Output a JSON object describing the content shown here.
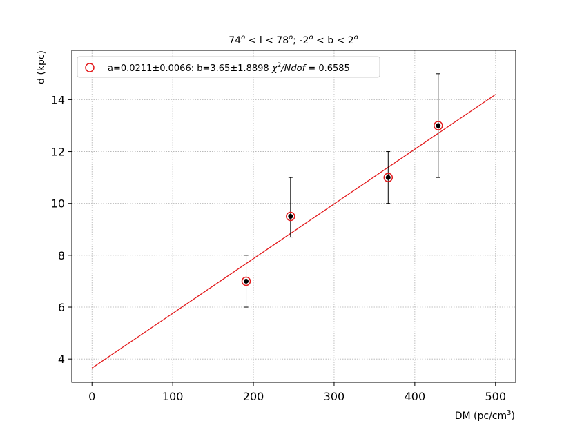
{
  "chart_data": {
    "type": "scatter",
    "title": {
      "pre": "74",
      "sup1": "o",
      "mid1": " < l < 78",
      "sup2": "o",
      "mid2": "; -2",
      "sup3": "o",
      "mid3": " < b < 2",
      "sup4": "o"
    },
    "xlabel": {
      "main": "DM (pc/cm",
      "sup": "3",
      "end": ")"
    },
    "ylabel": "d (kpc)",
    "xlim": [
      -25,
      525
    ],
    "ylim": [
      3.1,
      15.9
    ],
    "xticks": [
      0,
      100,
      200,
      300,
      400,
      500
    ],
    "yticks": [
      4,
      6,
      8,
      10,
      12,
      14
    ],
    "grid": true,
    "points": [
      {
        "x": 191,
        "y": 7.0,
        "err_low": 6.0,
        "err_high": 8.0
      },
      {
        "x": 246,
        "y": 9.5,
        "err_low": 8.7,
        "err_high": 11.0
      },
      {
        "x": 367,
        "y": 11.0,
        "err_low": 10.0,
        "err_high": 12.0
      },
      {
        "x": 429,
        "y": 13.0,
        "err_low": 11.0,
        "err_high": 15.0
      }
    ],
    "fit": {
      "a": 0.0211,
      "b": 3.65,
      "x_range": [
        0,
        500
      ],
      "color": "#e31a1c"
    },
    "legend": {
      "placement": "top-left",
      "text_main": "a=0.0211±0.0066: b=3.65±1.8898 ",
      "chi": "χ",
      "chi_sup": "2",
      "text_ndof": "/Ndof",
      "text_tail": " = 0.6585"
    },
    "colors": {
      "marker_edge": "#e31a1c",
      "marker_fill": "#000000",
      "errorbar": "#000000"
    }
  }
}
